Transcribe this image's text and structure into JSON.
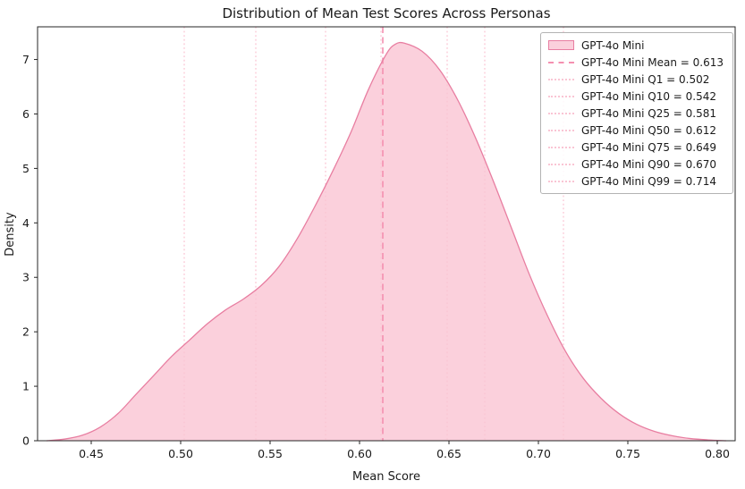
{
  "chart_data": {
    "type": "area",
    "kind": "kde-density",
    "title": "Distribution of Mean Test Scores Across Personas",
    "xlabel": "Mean Score",
    "ylabel": "Density",
    "xlim": [
      0.42,
      0.81
    ],
    "ylim": [
      0,
      7.6
    ],
    "xticks": [
      0.45,
      0.5,
      0.55,
      0.6,
      0.65,
      0.7,
      0.75,
      0.8
    ],
    "yticks": [
      0,
      1,
      2,
      3,
      4,
      5,
      6,
      7
    ],
    "grid": false,
    "legend_position": "upper right",
    "series": [
      {
        "name": "GPT-4o Mini",
        "x": [
          0.425,
          0.435,
          0.445,
          0.455,
          0.465,
          0.475,
          0.485,
          0.495,
          0.505,
          0.515,
          0.525,
          0.535,
          0.545,
          0.555,
          0.565,
          0.575,
          0.585,
          0.595,
          0.605,
          0.615,
          0.62,
          0.625,
          0.635,
          0.645,
          0.655,
          0.665,
          0.675,
          0.685,
          0.695,
          0.705,
          0.715,
          0.725,
          0.735,
          0.745,
          0.755,
          0.765,
          0.775,
          0.785,
          0.795,
          0.805
        ],
        "density": [
          0.0,
          0.03,
          0.1,
          0.25,
          0.5,
          0.85,
          1.2,
          1.55,
          1.85,
          2.15,
          2.4,
          2.6,
          2.85,
          3.2,
          3.7,
          4.3,
          4.95,
          5.65,
          6.45,
          7.1,
          7.28,
          7.3,
          7.15,
          6.8,
          6.25,
          5.55,
          4.75,
          3.9,
          3.05,
          2.3,
          1.65,
          1.15,
          0.78,
          0.5,
          0.3,
          0.17,
          0.09,
          0.04,
          0.015,
          0.0
        ]
      }
    ],
    "mean": {
      "value": 0.613,
      "label": "GPT-4o Mini Mean = 0.613"
    },
    "quantiles": [
      {
        "name": "Q1",
        "value": 0.502,
        "label": "GPT-4o Mini Q1 = 0.502"
      },
      {
        "name": "Q10",
        "value": 0.542,
        "label": "GPT-4o Mini Q10 = 0.542"
      },
      {
        "name": "Q25",
        "value": 0.581,
        "label": "GPT-4o Mini Q25 = 0.581"
      },
      {
        "name": "Q50",
        "value": 0.612,
        "label": "GPT-4o Mini Q50 = 0.612"
      },
      {
        "name": "Q75",
        "value": 0.649,
        "label": "GPT-4o Mini Q75 = 0.649"
      },
      {
        "name": "Q90",
        "value": 0.67,
        "label": "GPT-4o Mini Q90 = 0.670"
      },
      {
        "name": "Q99",
        "value": 0.714,
        "label": "GPT-4o Mini Q99 = 0.714"
      }
    ],
    "colors": {
      "fill": "#fbd0dc",
      "edge": "#e87ea1",
      "mean_line": "#f48fb0",
      "quantile_line": "#fac5d4",
      "axis": "#262626",
      "background": "#ffffff"
    }
  }
}
